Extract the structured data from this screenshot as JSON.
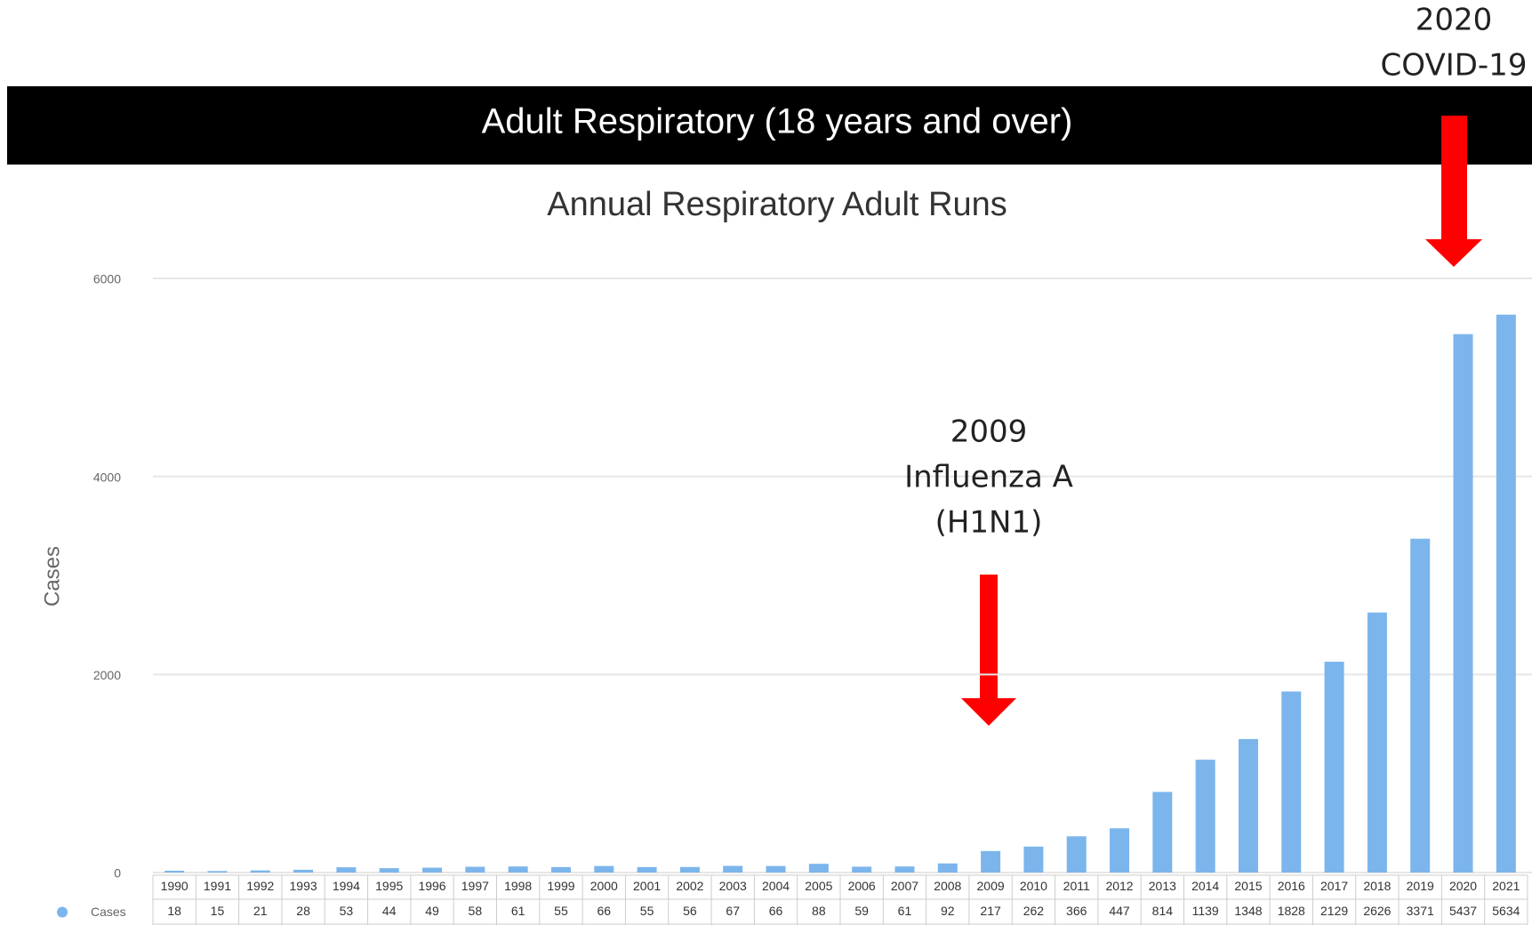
{
  "chart_data": {
    "type": "bar",
    "banner": "Adult Respiratory (18 years and over)",
    "title": "Annual Respiratory Adult Runs",
    "y_label": "Cases",
    "categories": [
      "1990",
      "1991",
      "1992",
      "1993",
      "1994",
      "1995",
      "1996",
      "1997",
      "1998",
      "1999",
      "2000",
      "2001",
      "2002",
      "2003",
      "2004",
      "2005",
      "2006",
      "2007",
      "2008",
      "2009",
      "2010",
      "2011",
      "2012",
      "2013",
      "2014",
      "2015",
      "2016",
      "2017",
      "2018",
      "2019",
      "2020",
      "2021"
    ],
    "series": [
      {
        "name": "Cases",
        "color": "#7cb5ec",
        "values": [
          18,
          15,
          21,
          28,
          53,
          44,
          49,
          58,
          61,
          55,
          66,
          55,
          56,
          67,
          66,
          88,
          59,
          61,
          92,
          217,
          262,
          366,
          447,
          814,
          1139,
          1348,
          1828,
          2129,
          2626,
          3371,
          5437,
          5634
        ]
      }
    ],
    "ylim": [
      0,
      6000
    ],
    "yticks": [
      0,
      2000,
      4000,
      6000
    ],
    "grid": true,
    "annotations": [
      {
        "lines": [
          "2009",
          "Influenza A",
          "(H1N1)"
        ]
      },
      {
        "lines": [
          "2020",
          "COVID-19"
        ]
      }
    ]
  }
}
